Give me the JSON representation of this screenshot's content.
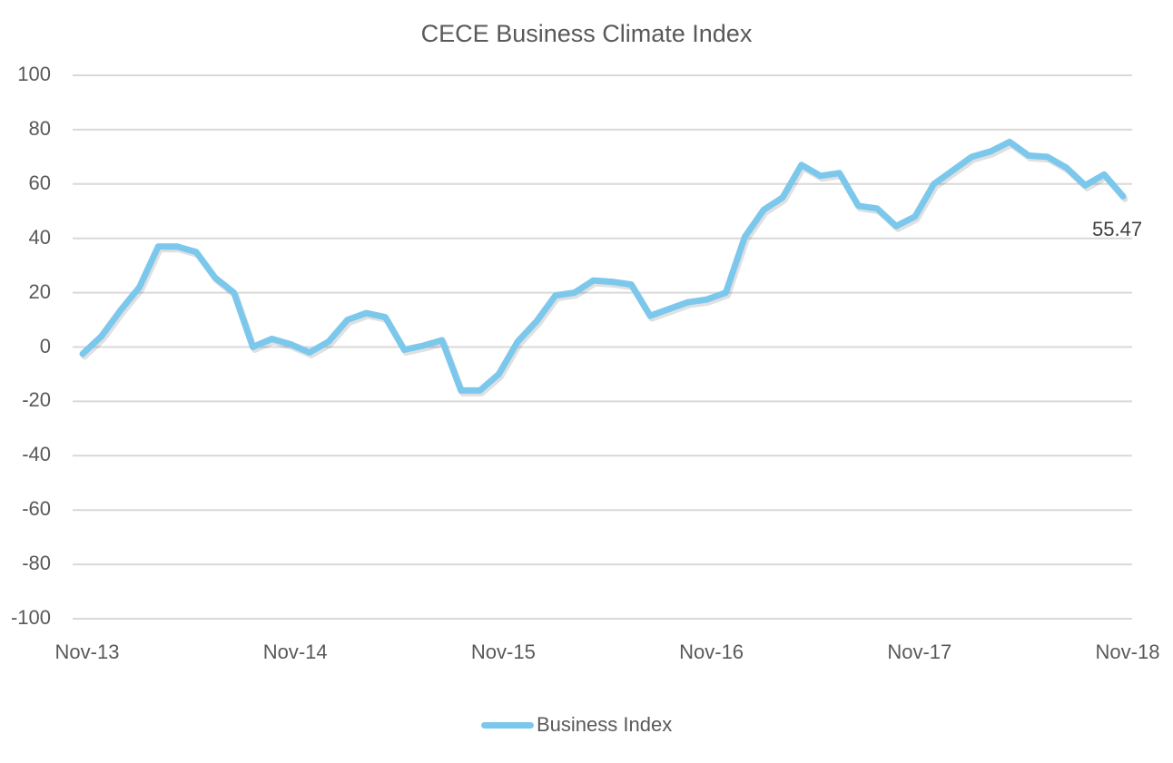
{
  "chart_data": {
    "type": "line",
    "title": "CECE Business Climate Index",
    "xlabel": "",
    "ylabel": "",
    "ylim": [
      -100,
      100
    ],
    "yticks": [
      100,
      80,
      60,
      40,
      20,
      0,
      -20,
      -40,
      -60,
      -80,
      -100
    ],
    "ytick_labels": [
      "100",
      "80",
      "60",
      "40",
      "20",
      "0",
      "-20",
      "-40",
      "-60",
      "-80",
      "-100"
    ],
    "xtick_labels": [
      "Nov-13",
      "Nov-14",
      "Nov-15",
      "Nov-16",
      "Nov-17",
      "Nov-18"
    ],
    "grid": true,
    "legend_position": "bottom",
    "series": [
      {
        "name": "Business Index",
        "color": "#7cc8ec",
        "x_start": "Nov-13",
        "x_end": "Nov-18",
        "values": [
          -2.5,
          4,
          13.5,
          22,
          37,
          37,
          35,
          25.5,
          20,
          0,
          3,
          1,
          -2,
          2,
          10,
          12.5,
          11,
          -1,
          0.5,
          2.5,
          -16,
          -16,
          -10,
          2,
          9.5,
          19,
          20,
          24.5,
          24,
          23,
          11.5,
          14,
          16.5,
          17.5,
          20,
          40.5,
          50.5,
          55,
          67,
          63,
          64,
          52,
          51,
          44.5,
          48,
          60,
          65,
          70,
          72,
          75.5,
          70.5,
          70,
          66,
          59.5,
          63.5,
          55.47
        ]
      }
    ],
    "annotations": [
      {
        "text": "55.47",
        "target": "last point"
      }
    ]
  },
  "legend": {
    "label": "Business Index"
  },
  "last_value_label": "55.47"
}
